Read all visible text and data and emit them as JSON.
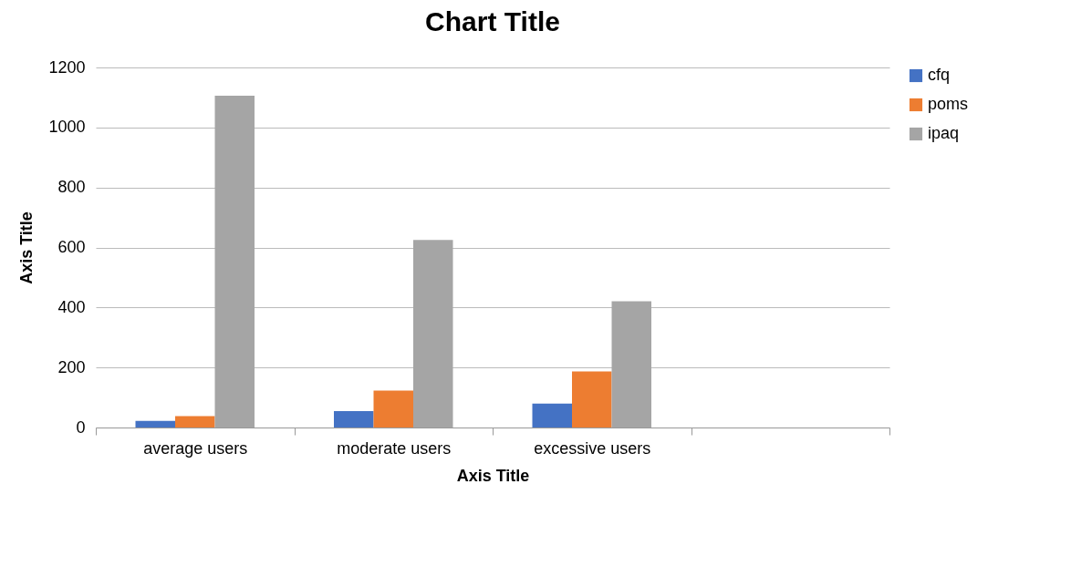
{
  "chart_data": {
    "type": "bar",
    "title": "Chart Title",
    "xlabel": "Axis Title",
    "ylabel": "Axis Title",
    "categories": [
      "average users",
      "moderate users",
      "excessive users",
      null
    ],
    "series": [
      {
        "name": "cfq",
        "color": "#4472c4",
        "values": [
          22,
          55,
          80,
          null
        ]
      },
      {
        "name": "poms",
        "color": "#ed7d31",
        "values": [
          38,
          123,
          187,
          null
        ]
      },
      {
        "name": "ipaq",
        "color": "#a5a5a5",
        "values": [
          1106,
          625,
          421,
          null
        ]
      }
    ],
    "ylim": [
      0,
      1200
    ],
    "yticks": [
      0,
      200,
      400,
      600,
      800,
      1000,
      1200
    ],
    "grid": "y",
    "legend": "right"
  }
}
